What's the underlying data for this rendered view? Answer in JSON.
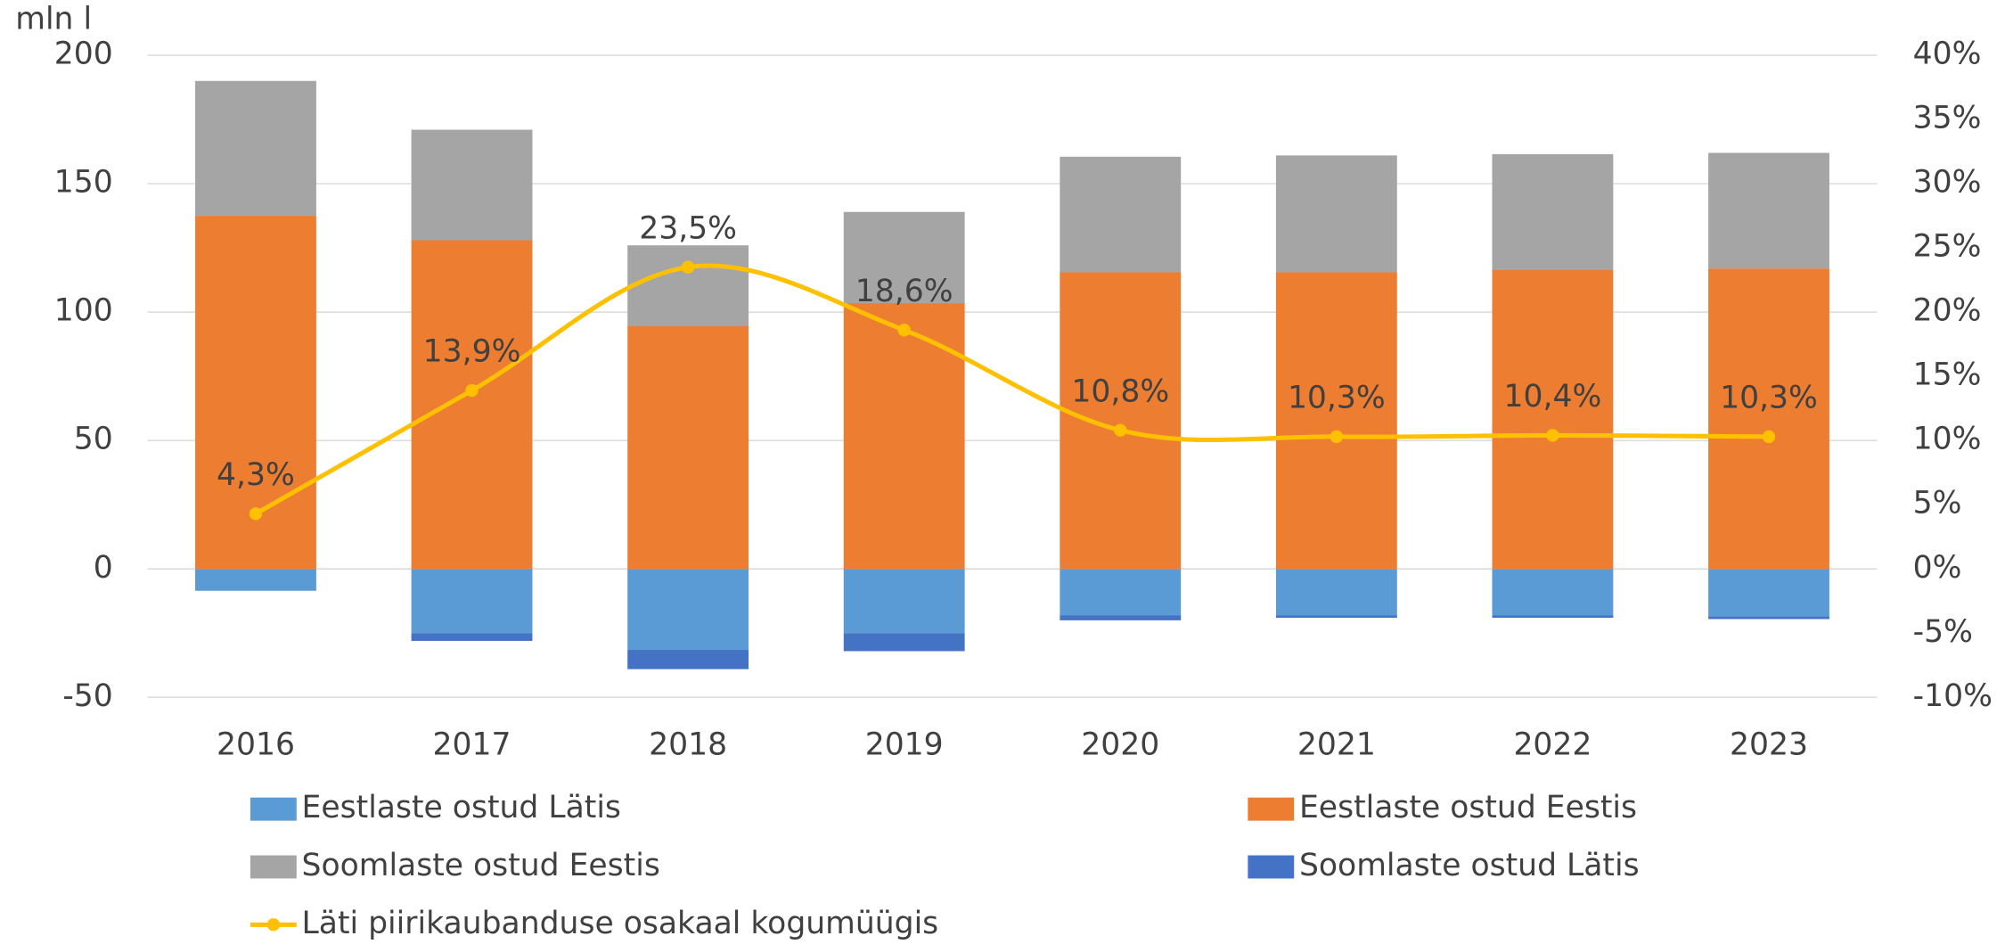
{
  "chart_data": {
    "type": "bar",
    "y_label": "mln l",
    "categories": [
      "2016",
      "2017",
      "2018",
      "2019",
      "2020",
      "2021",
      "2022",
      "2023"
    ],
    "series": [
      {
        "name": "Eestlaste ostud Lätis",
        "color": "#5b9bd5",
        "values": [
          -8.5,
          -25,
          -31.5,
          -25,
          -18,
          -18,
          -18,
          -18.5
        ]
      },
      {
        "name": "Eestlaste ostud Eestis",
        "color": "#ed7d31",
        "values": [
          137.5,
          128,
          94.5,
          103.5,
          115.5,
          115.5,
          116.5,
          117
        ]
      },
      {
        "name": "Soomlaste ostud Eestis",
        "color": "#a5a5a5",
        "values": [
          52.5,
          43,
          31.5,
          35.5,
          45,
          45.5,
          45,
          45
        ]
      },
      {
        "name": "Soomlaste ostud Lätis",
        "color": "#4472c4",
        "values": [
          0,
          -3,
          -7.5,
          -7,
          -2,
          -1,
          -1,
          -1
        ]
      },
      {
        "name": "Läti piirikaubanduse osakaal kogumüügis",
        "color": "#ffc000",
        "type": "line",
        "axis": "y2",
        "values": [
          4.3,
          13.9,
          23.5,
          18.6,
          10.8,
          10.3,
          10.4,
          10.3
        ],
        "value_labels": [
          "4,3%",
          "13,9%",
          "23,5%",
          "18,6%",
          "10,8%",
          "10,3%",
          "10,4%",
          "10,3%"
        ]
      }
    ],
    "ylim": [
      -50,
      200
    ],
    "yticks": [
      -50,
      0,
      50,
      100,
      150,
      200
    ],
    "y2lim": [
      -10,
      40
    ],
    "y2ticks": [
      {
        "value": -10,
        "label": "-10%"
      },
      {
        "value": -5,
        "label": "-5%"
      },
      {
        "value": 0,
        "label": "0%"
      },
      {
        "value": 5,
        "label": "5%"
      },
      {
        "value": 10,
        "label": "10%"
      },
      {
        "value": 15,
        "label": "15%"
      },
      {
        "value": 20,
        "label": "20%"
      },
      {
        "value": 25,
        "label": "25%"
      },
      {
        "value": 30,
        "label": "30%"
      },
      {
        "value": 35,
        "label": "35%"
      },
      {
        "value": 40,
        "label": "40%"
      }
    ],
    "grid": true,
    "legend": "bottom"
  }
}
